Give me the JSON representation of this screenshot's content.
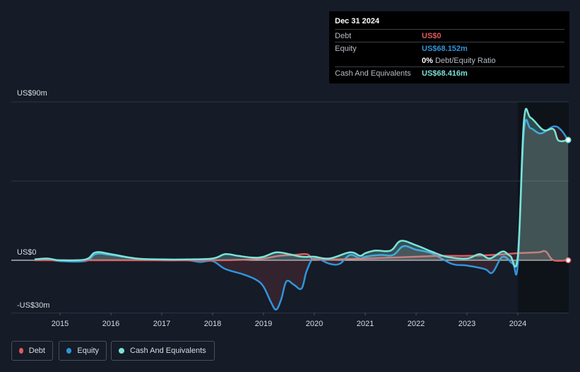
{
  "tooltip": {
    "date": "Dec 31 2024",
    "rows": [
      {
        "label": "Debt",
        "value": "US$0",
        "color": "#e05a5f"
      },
      {
        "label": "Equity",
        "value": "US$68.152m",
        "color": "#2f95dc"
      },
      {
        "label": "",
        "value": "0%",
        "suffix": "Debt/Equity Ratio",
        "color": "#ffffff"
      },
      {
        "label": "Cash And Equivalents",
        "value": "US$68.416m",
        "color": "#7be3d6"
      }
    ]
  },
  "legend": [
    {
      "label": "Debt",
      "color": "#e05a5f"
    },
    {
      "label": "Equity",
      "color": "#2f95dc"
    },
    {
      "label": "Cash And Equivalents",
      "color": "#7be3d6"
    }
  ],
  "chart_data": {
    "type": "area",
    "ylim": [
      -30,
      90
    ],
    "xlim": [
      2014.5,
      2025.0
    ],
    "y_tick_labels": [
      {
        "value": 90,
        "label": "US$90m"
      },
      {
        "value": 0,
        "label": "US$0"
      },
      {
        "value": -30,
        "label": "-US$30m"
      }
    ],
    "x_tick_labels": [
      "2015",
      "2016",
      "2017",
      "2018",
      "2019",
      "2020",
      "2021",
      "2022",
      "2023",
      "2024"
    ],
    "grid": true,
    "legend_position": "bottom-left",
    "series": [
      {
        "name": "Debt",
        "color": "#e05a5f",
        "points": [
          [
            2014.5,
            0
          ],
          [
            2015.0,
            0
          ],
          [
            2016.0,
            0
          ],
          [
            2017.0,
            0
          ],
          [
            2018.0,
            0
          ],
          [
            2018.5,
            0.2
          ],
          [
            2019.0,
            1
          ],
          [
            2019.3,
            2.5
          ],
          [
            2019.6,
            3
          ],
          [
            2019.85,
            3.5
          ],
          [
            2019.95,
            1
          ],
          [
            2020.0,
            0.5
          ],
          [
            2020.5,
            0.5
          ],
          [
            2021.0,
            1
          ],
          [
            2021.5,
            1.5
          ],
          [
            2022.0,
            2
          ],
          [
            2022.5,
            2.5
          ],
          [
            2023.0,
            2.5
          ],
          [
            2023.5,
            3
          ],
          [
            2024.0,
            4
          ],
          [
            2024.4,
            4.5
          ],
          [
            2024.55,
            5
          ],
          [
            2024.7,
            0
          ],
          [
            2024.99,
            0
          ]
        ]
      },
      {
        "name": "Equity",
        "color": "#2f95dc",
        "points": [
          [
            2014.5,
            0.5
          ],
          [
            2014.75,
            0.5
          ],
          [
            2015.0,
            -0.5
          ],
          [
            2015.5,
            -0.5
          ],
          [
            2015.7,
            3.5
          ],
          [
            2016.0,
            3
          ],
          [
            2016.5,
            1
          ],
          [
            2017.0,
            0
          ],
          [
            2017.5,
            0
          ],
          [
            2017.75,
            -1
          ],
          [
            2018.0,
            -0.5
          ],
          [
            2018.25,
            -5
          ],
          [
            2018.6,
            -8
          ],
          [
            2018.85,
            -11
          ],
          [
            2019.0,
            -15
          ],
          [
            2019.15,
            -24
          ],
          [
            2019.25,
            -28
          ],
          [
            2019.35,
            -22
          ],
          [
            2019.45,
            -12
          ],
          [
            2019.6,
            -14
          ],
          [
            2019.75,
            -16
          ],
          [
            2019.85,
            -6
          ],
          [
            2020.0,
            1
          ],
          [
            2020.3,
            -2
          ],
          [
            2020.5,
            -2
          ],
          [
            2020.7,
            3
          ],
          [
            2020.9,
            1
          ],
          [
            2021.0,
            2
          ],
          [
            2021.3,
            3
          ],
          [
            2021.55,
            3
          ],
          [
            2021.75,
            8
          ],
          [
            2022.0,
            6
          ],
          [
            2022.3,
            4
          ],
          [
            2022.7,
            -2
          ],
          [
            2023.0,
            -3
          ],
          [
            2023.35,
            -5
          ],
          [
            2023.5,
            -7
          ],
          [
            2023.7,
            2
          ],
          [
            2023.9,
            -2
          ],
          [
            2024.0,
            -2
          ],
          [
            2024.12,
            73
          ],
          [
            2024.25,
            75
          ],
          [
            2024.45,
            72
          ],
          [
            2024.7,
            76
          ],
          [
            2024.85,
            74
          ],
          [
            2024.99,
            68.15
          ]
        ]
      },
      {
        "name": "Cash And Equivalents",
        "color": "#7be3d6",
        "points": [
          [
            2014.5,
            0.5
          ],
          [
            2014.75,
            1
          ],
          [
            2015.0,
            0
          ],
          [
            2015.5,
            0.5
          ],
          [
            2015.7,
            4.5
          ],
          [
            2016.0,
            3.5
          ],
          [
            2016.5,
            1
          ],
          [
            2017.0,
            0.5
          ],
          [
            2017.5,
            0.5
          ],
          [
            2018.0,
            1
          ],
          [
            2018.25,
            3.5
          ],
          [
            2018.5,
            2.5
          ],
          [
            2018.8,
            1.5
          ],
          [
            2019.0,
            2
          ],
          [
            2019.25,
            4.5
          ],
          [
            2019.5,
            3.5
          ],
          [
            2019.75,
            2
          ],
          [
            2020.0,
            2
          ],
          [
            2020.3,
            1
          ],
          [
            2020.7,
            4.5
          ],
          [
            2020.9,
            2.5
          ],
          [
            2021.0,
            4
          ],
          [
            2021.2,
            5.5
          ],
          [
            2021.5,
            5.5
          ],
          [
            2021.7,
            11
          ],
          [
            2022.0,
            8.5
          ],
          [
            2022.3,
            5
          ],
          [
            2022.6,
            2
          ],
          [
            2023.0,
            1
          ],
          [
            2023.25,
            3.5
          ],
          [
            2023.45,
            1
          ],
          [
            2023.7,
            5
          ],
          [
            2023.85,
            2.5
          ],
          [
            2024.0,
            2.5
          ],
          [
            2024.12,
            79
          ],
          [
            2024.25,
            81
          ],
          [
            2024.5,
            74
          ],
          [
            2024.7,
            74.5
          ],
          [
            2024.8,
            68
          ],
          [
            2024.99,
            68.4
          ]
        ]
      }
    ]
  }
}
